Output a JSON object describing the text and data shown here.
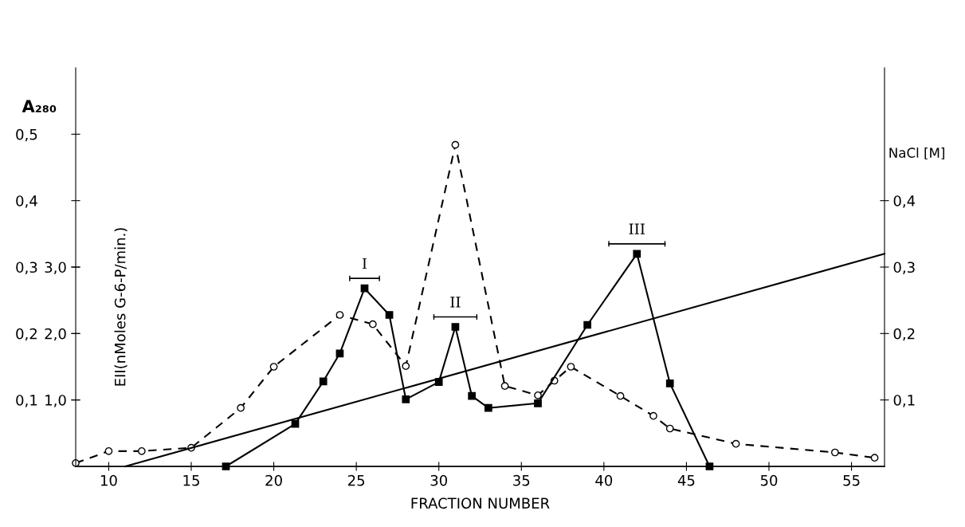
{
  "chart_data": {
    "type": "line",
    "xlabel": "FRACTION NUMBER",
    "ylabel": "A₂₈₀",
    "y2label": "EII(nMoles G-6-P/min.)",
    "y3label": "NaCl [M]",
    "xlim": [
      8,
      57
    ],
    "xticks": [
      10,
      15,
      20,
      25,
      30,
      35,
      40,
      45,
      50,
      55
    ],
    "ylim": [
      0,
      0.6
    ],
    "yticks": [
      {
        "value": 0.1,
        "label": "0,1"
      },
      {
        "value": 0.2,
        "label": "0,2"
      },
      {
        "value": 0.3,
        "label": "0,3"
      },
      {
        "value": 0.4,
        "label": "0,4"
      },
      {
        "value": 0.5,
        "label": "0,5"
      }
    ],
    "y2lim": [
      0,
      6
    ],
    "y2ticks": [
      {
        "value": 1,
        "label": "1,0"
      },
      {
        "value": 2,
        "label": "2,0"
      },
      {
        "value": 3,
        "label": "3,0"
      }
    ],
    "y3lim": [
      0,
      0.6
    ],
    "y3ticks": [
      {
        "value": 0.1,
        "label": "0,1"
      },
      {
        "value": 0.2,
        "label": "0,2"
      },
      {
        "value": 0.3,
        "label": "0,3"
      },
      {
        "value": 0.4,
        "label": "0,4"
      }
    ],
    "grid": false,
    "legend": false,
    "series": [
      {
        "color": "#000000",
        "marker": "circle",
        "line_style": "dashed",
        "axis": "y",
        "x": [
          8,
          10,
          12,
          15,
          18,
          20,
          24,
          26,
          28,
          31,
          34,
          36,
          37,
          38,
          41,
          43,
          44,
          48,
          54,
          56.4
        ],
        "values": [
          0.005,
          0.023,
          0.023,
          0.028,
          0.088,
          0.15,
          0.228,
          0.214,
          0.151,
          0.484,
          0.121,
          0.107,
          0.129,
          0.15,
          0.106,
          0.076,
          0.057,
          0.034,
          0.021,
          0.013
        ]
      },
      {
        "color": "#000000",
        "marker": "square",
        "line_style": "solid",
        "axis": "y2",
        "x": [
          17.1,
          21.3,
          23,
          24,
          25.5,
          27,
          28,
          30,
          31,
          32,
          33,
          36,
          39,
          42,
          44,
          46.4
        ],
        "values": [
          0,
          0.64,
          1.28,
          1.7,
          2.68,
          2.28,
          1.01,
          1.27,
          2.1,
          1.06,
          0.88,
          0.95,
          2.13,
          3.2,
          1.25,
          0
        ]
      },
      {
        "color": "#000000",
        "marker": "none",
        "line_style": "solid",
        "axis": "y3",
        "x": [
          11,
          57
        ],
        "values": [
          0,
          0.32
        ]
      }
    ],
    "annotations": [
      "I",
      "II",
      "III"
    ]
  }
}
